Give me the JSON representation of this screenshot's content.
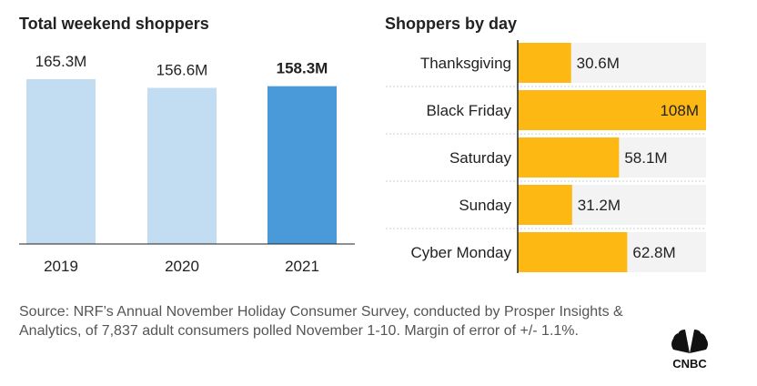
{
  "chart_data": [
    {
      "type": "bar",
      "title": "Total weekend shoppers",
      "categories": [
        "2019",
        "2020",
        "2021"
      ],
      "values": [
        165.3,
        156.6,
        158.3
      ],
      "labels": [
        "165.3M",
        "156.6M",
        "158.3M"
      ],
      "unit": "M",
      "highlight_index": 2,
      "colors": {
        "normal": "#c2ddf2",
        "highlight": "#4a9ad9"
      },
      "ylim": [
        0,
        165.3
      ]
    },
    {
      "type": "bar",
      "orientation": "horizontal",
      "title": "Shoppers by day",
      "categories": [
        "Thanksgiving",
        "Black Friday",
        "Saturday",
        "Sunday",
        "Cyber Monday"
      ],
      "values": [
        30.6,
        108,
        58.1,
        31.2,
        62.8
      ],
      "labels": [
        "30.6M",
        "108M",
        "58.1M",
        "31.2M",
        "62.8M"
      ],
      "unit": "M",
      "colors": {
        "bar": "#fdb813",
        "track": "#f3f3f3"
      },
      "xlim": [
        0,
        108
      ]
    }
  ],
  "source": "Source: NRF’s Annual November Holiday Consumer Survey, conducted by Prosper Insights & Analytics, of 7,837 adult consumers polled November 1-10. Margin of error of +/- 1.1%.",
  "logo": {
    "text": "CNBC",
    "icon": "nbc-peacock-icon"
  }
}
